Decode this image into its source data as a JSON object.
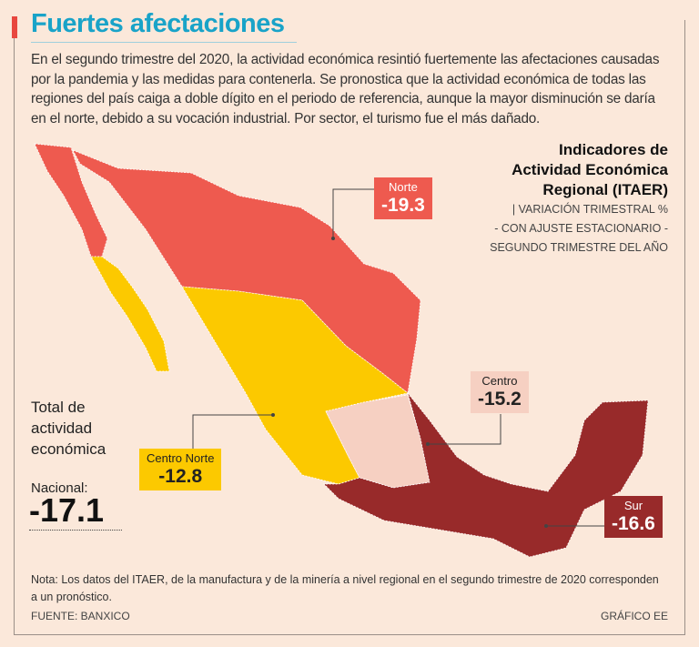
{
  "title": "Fuertes afectaciones",
  "intro": "En el segundo trimestre del 2020, la actividad económica resintió fuertemente las afectaciones causadas por la pandemia y las medidas para contenerla. Se pronostica que la actividad económica de todas las regiones del país caiga a doble dígito en el periodo de referencia, aunque la mayor disminución se daría en el norte, debido a su vocación industrial. Por sector, el turismo fue el más dañado.",
  "indicator": {
    "l1": "Indicadores de",
    "l2": "Actividad Económica",
    "l3": "Regional (ITAER)",
    "s1": "| VARIACIÓN TRIMESTRAL %",
    "s2": "- CON AJUSTE ESTACIONARIO -",
    "s3": "SEGUNDO TRIMESTRE DEL AÑO"
  },
  "regions": [
    {
      "name": "Norte",
      "value": "-19.3",
      "color": "#ee5a4f"
    },
    {
      "name": "Centro",
      "value": "-15.2",
      "color": "#f6d0c2"
    },
    {
      "name": "Centro Norte",
      "value": "-12.8",
      "color": "#fcc900"
    },
    {
      "name": "Sur",
      "value": "-16.6",
      "color": "#982a2a"
    }
  ],
  "total": {
    "l1": "Total de",
    "l2": "actividad",
    "l3": "económica",
    "label": "Nacional:",
    "value": "-17.1"
  },
  "note": "Nota: Los datos del ITAER, de la manufactura y de la minería  a nivel regional en el segundo trimestre de 2020 corresponden a un pronóstico.",
  "source": "FUENTE: BANXICO",
  "credit": "GRÁFICO EE"
}
